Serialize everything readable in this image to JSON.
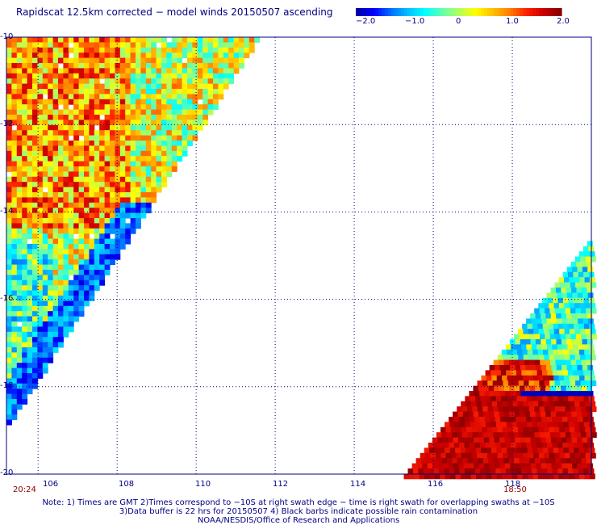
{
  "title": "Rapidscat 12.5km corrected − model winds 20150507 ascending",
  "colorbar": {
    "labels": [
      "−2.0",
      "−1.0",
      "0",
      "1.0",
      "2.0"
    ],
    "min": -2.0,
    "max": 2.0,
    "colors": [
      "#0000aa",
      "#0000ff",
      "#0070ff",
      "#00c0ff",
      "#00ffff",
      "#60ffb0",
      "#b0ff60",
      "#ffff00",
      "#ffc000",
      "#ff8000",
      "#ff2000",
      "#cc0000",
      "#8b0000"
    ]
  },
  "axes": {
    "lon_ticks": [
      "106",
      "108",
      "110",
      "112",
      "114",
      "116",
      "118"
    ],
    "lat_ticks": [
      "-10",
      "-12",
      "-14",
      "-16",
      "-18",
      "-20"
    ],
    "lon_range": [
      105.2,
      120.0
    ],
    "lat_range": [
      -20.0,
      -10.0
    ],
    "grid": "dotted"
  },
  "times": {
    "left": "20:24",
    "right": "18:50"
  },
  "notes": {
    "line1": "Note: 1) Times are GMT 2)Times correspond to −10S at right swath edge − time is right swath for overlapping swaths at −10S",
    "line2": "3)Data buffer is 22 hrs for 20150507 4) Black barbs indicate possible rain contamination",
    "line3": "NOAA/NESDIS/Office of Research and Applications"
  }
}
